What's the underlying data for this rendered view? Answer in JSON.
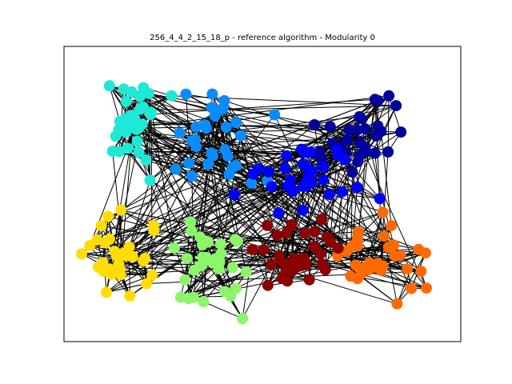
{
  "chart_data": {
    "type": "scatter",
    "subtype": "network-graph",
    "title": "256_4_4_2_15_18_p - reference algorithm - Modularity 0",
    "xlabel": "",
    "ylabel": "",
    "axes_ticks": false,
    "grid": false,
    "node_count": 256,
    "edge_style": "black lines",
    "communities": [
      {
        "name": "cyan",
        "color": "#1de9d6",
        "count": 32,
        "center": [
          0.14,
          0.22
        ],
        "spread": [
          0.09,
          0.14
        ]
      },
      {
        "name": "light-blue",
        "color": "#0a8cff",
        "count": 32,
        "center": [
          0.38,
          0.28
        ],
        "spread": [
          0.12,
          0.16
        ]
      },
      {
        "name": "navy",
        "color": "#00009a",
        "count": 32,
        "center": [
          0.76,
          0.28
        ],
        "spread": [
          0.1,
          0.12
        ]
      },
      {
        "name": "blue",
        "color": "#0000ff",
        "count": 32,
        "center": [
          0.62,
          0.44
        ],
        "spread": [
          0.14,
          0.12
        ]
      },
      {
        "name": "yellow",
        "color": "#ffdd00",
        "count": 32,
        "center": [
          0.12,
          0.73
        ],
        "spread": [
          0.1,
          0.15
        ]
      },
      {
        "name": "lime-green",
        "color": "#8cf56a",
        "count": 32,
        "center": [
          0.36,
          0.78
        ],
        "spread": [
          0.11,
          0.16
        ]
      },
      {
        "name": "orange",
        "color": "#ff6a00",
        "count": 32,
        "center": [
          0.83,
          0.74
        ],
        "spread": [
          0.11,
          0.16
        ]
      },
      {
        "name": "dark-red",
        "color": "#8b0000",
        "count": 32,
        "center": [
          0.58,
          0.73
        ],
        "spread": [
          0.1,
          0.13
        ]
      }
    ],
    "xlim": [
      0,
      1
    ],
    "ylim": [
      0,
      1
    ]
  }
}
